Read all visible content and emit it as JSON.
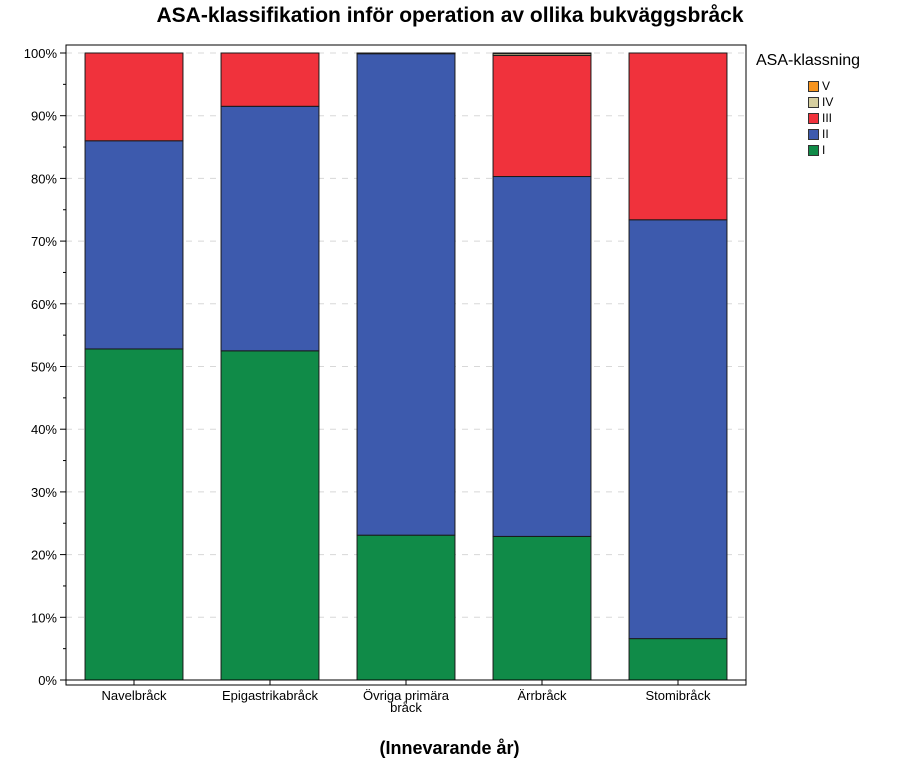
{
  "chart_data": {
    "type": "bar",
    "stacked": true,
    "title": "ASA-klassifikation inför operation av ollika bukväggsbråck",
    "xlabel": "(Innevarande år)",
    "ylabel": "",
    "ylim": [
      0,
      100
    ],
    "yticks": [
      "0%",
      "10%",
      "20%",
      "30%",
      "40%",
      "50%",
      "60%",
      "70%",
      "80%",
      "90%",
      "100%"
    ],
    "grid": "horizontal dashed",
    "categories": [
      "Navelbråck",
      "Epigastrikabråck",
      "Övriga primära bråck",
      "Ärrbråck",
      "Stomibråck"
    ],
    "legend": {
      "title": "ASA-klassning",
      "placement": "right"
    },
    "series": [
      {
        "name": "I",
        "color": "#108b48",
        "values": [
          52.8,
          52.5,
          23.1,
          22.9,
          6.6
        ]
      },
      {
        "name": "II",
        "color": "#3d5aad",
        "values": [
          33.2,
          39.0,
          76.8,
          57.4,
          66.8
        ]
      },
      {
        "name": "III",
        "color": "#f0323c",
        "values": [
          14.0,
          8.5,
          0.0,
          19.3,
          26.6
        ]
      },
      {
        "name": "IV",
        "color": "#d6cfa0",
        "values": [
          0.0,
          0.0,
          0.1,
          0.3,
          0.0
        ]
      },
      {
        "name": "V",
        "color": "#f7941d",
        "values": [
          0.0,
          0.0,
          0.0,
          0.1,
          0.0
        ]
      }
    ]
  }
}
